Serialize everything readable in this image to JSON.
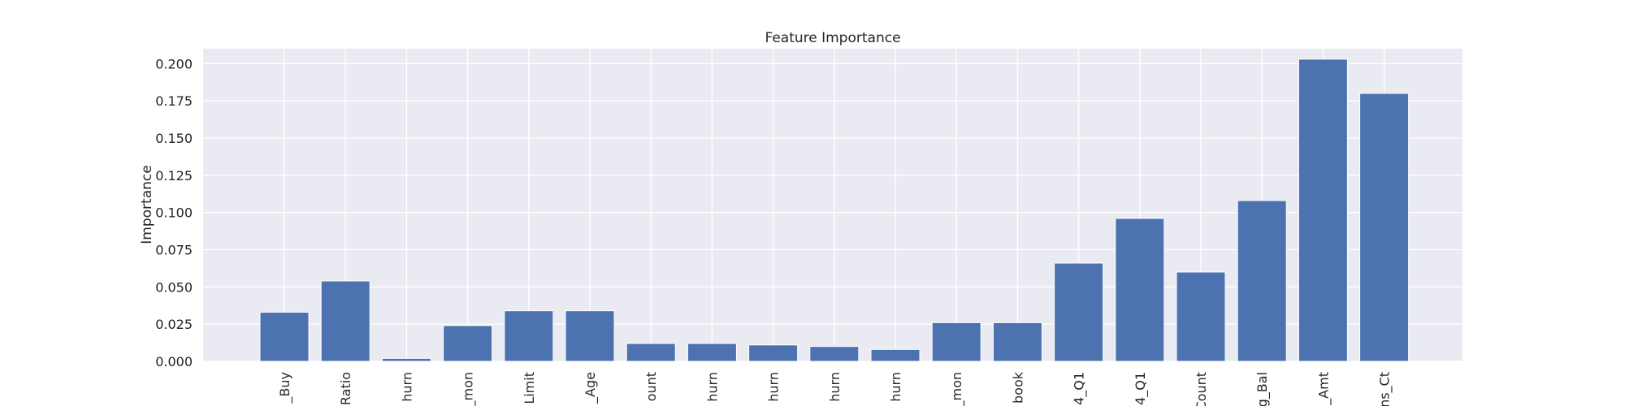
{
  "chart_data": {
    "type": "bar",
    "title": "Feature Importance",
    "xlabel": "",
    "ylabel": "Importance",
    "ylim": [
      0,
      0.21
    ],
    "yticks": [
      "0.000",
      "0.025",
      "0.050",
      "0.075",
      "0.100",
      "0.125",
      "0.150",
      "0.175",
      "0.200"
    ],
    "grid": true,
    "categories": [
      "_Buy",
      "Ratio",
      "hurn",
      "_mon",
      "Limit",
      "_Age",
      "ount",
      "hurn",
      "hurn",
      "hurn",
      "hurn",
      "_mon",
      "book",
      "4_Q1",
      "4_Q1",
      "Count",
      "g_Bal",
      "_Amt",
      "ns_Ct"
    ],
    "values": [
      0.033,
      0.054,
      0.002,
      0.024,
      0.034,
      0.034,
      0.012,
      0.012,
      0.011,
      0.01,
      0.008,
      0.026,
      0.026,
      0.066,
      0.096,
      0.06,
      0.108,
      0.203,
      0.18
    ],
    "colors": {
      "bar": "#4c72b0",
      "background": "#eaeaf2",
      "grid": "#ffffff"
    }
  }
}
